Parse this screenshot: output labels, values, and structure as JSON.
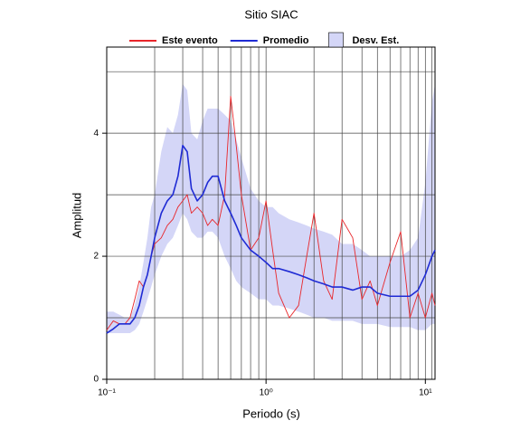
{
  "chart_data": {
    "type": "line",
    "title": "Sitio SIAC",
    "xlabel": "Periodo (s)",
    "ylabel": "Amplitud",
    "xscale": "log",
    "x": [
      0.1,
      0.11,
      0.12,
      0.13,
      0.14,
      0.15,
      0.16,
      0.17,
      0.18,
      0.19,
      0.2,
      0.22,
      0.24,
      0.26,
      0.28,
      0.3,
      0.32,
      0.34,
      0.37,
      0.4,
      0.43,
      0.46,
      0.5,
      0.55,
      0.6,
      0.65,
      0.7,
      0.8,
      0.9,
      1.0,
      1.1,
      1.2,
      1.4,
      1.6,
      1.8,
      2.0,
      2.3,
      2.6,
      3.0,
      3.5,
      4.0,
      4.5,
      5.0,
      6.0,
      7.0,
      8.0,
      9.0,
      10.0,
      11.0,
      11.5
    ],
    "band": {
      "name": "Desv. Est.",
      "color": "#d4d6f7",
      "upper": [
        1.1,
        1.1,
        1.05,
        1.0,
        1.0,
        1.2,
        1.5,
        1.9,
        2.3,
        2.8,
        3.0,
        3.7,
        4.1,
        4.0,
        4.3,
        4.8,
        4.7,
        4.0,
        3.9,
        4.2,
        4.4,
        4.4,
        4.4,
        4.3,
        4.2,
        3.9,
        3.6,
        3.1,
        2.9,
        2.8,
        2.8,
        2.7,
        2.6,
        2.55,
        2.5,
        2.45,
        2.4,
        2.35,
        2.2,
        2.2,
        2.1,
        2.0,
        2.0,
        2.0,
        2.0,
        2.1,
        2.3,
        3.2,
        4.5,
        4.8
      ],
      "lower": [
        0.75,
        0.75,
        0.75,
        0.75,
        0.75,
        0.8,
        0.9,
        1.1,
        1.3,
        1.5,
        1.7,
        2.0,
        2.2,
        2.3,
        2.5,
        2.7,
        2.6,
        2.4,
        2.3,
        2.3,
        2.4,
        2.4,
        2.3,
        2.0,
        1.8,
        1.6,
        1.5,
        1.4,
        1.3,
        1.3,
        1.2,
        1.2,
        1.15,
        1.1,
        1.05,
        1.0,
        1.0,
        0.95,
        0.95,
        0.95,
        0.9,
        0.9,
        0.9,
        0.85,
        0.85,
        0.85,
        0.8,
        0.8,
        0.9,
        0.9
      ]
    },
    "series": [
      {
        "name": "Este evento",
        "color": "#e8262a",
        "values": [
          0.8,
          0.95,
          0.9,
          0.9,
          1.0,
          1.3,
          1.6,
          1.5,
          1.7,
          2.0,
          2.2,
          2.3,
          2.5,
          2.6,
          2.8,
          2.9,
          3.0,
          2.7,
          2.8,
          2.7,
          2.5,
          2.6,
          2.5,
          3.0,
          4.6,
          3.8,
          3.0,
          2.1,
          2.3,
          2.9,
          2.1,
          1.4,
          1.0,
          1.2,
          2.0,
          2.7,
          1.6,
          1.3,
          2.6,
          2.3,
          1.3,
          1.6,
          1.2,
          1.9,
          2.4,
          1.0,
          1.4,
          1.0,
          1.4,
          1.2
        ]
      },
      {
        "name": "Promedio",
        "color": "#1f2bd4",
        "values": [
          0.75,
          0.82,
          0.9,
          0.9,
          0.9,
          1.0,
          1.2,
          1.5,
          1.7,
          2.0,
          2.3,
          2.7,
          2.9,
          3.0,
          3.3,
          3.8,
          3.7,
          3.1,
          2.9,
          3.0,
          3.2,
          3.3,
          3.3,
          2.9,
          2.7,
          2.5,
          2.3,
          2.1,
          2.0,
          1.9,
          1.8,
          1.8,
          1.75,
          1.7,
          1.65,
          1.6,
          1.55,
          1.5,
          1.5,
          1.45,
          1.5,
          1.5,
          1.4,
          1.35,
          1.35,
          1.35,
          1.45,
          1.7,
          2.0,
          2.1
        ]
      }
    ],
    "xlim": [
      0.1,
      11.5
    ],
    "ylim": [
      0,
      5.4
    ],
    "xticks": [
      {
        "value": 0.1,
        "label": "10⁻¹"
      },
      {
        "value": 1,
        "label": "10⁰"
      },
      {
        "value": 10,
        "label": "10¹"
      }
    ],
    "xgrid": [
      0.2,
      0.3,
      0.4,
      0.5,
      0.6,
      0.7,
      0.8,
      0.9,
      1,
      2,
      3,
      4,
      5,
      6,
      7,
      8,
      9,
      10,
      11
    ],
    "yticks": [
      0,
      2,
      4
    ],
    "ygrid": [
      1,
      2,
      3,
      4,
      5
    ],
    "grid": true
  }
}
